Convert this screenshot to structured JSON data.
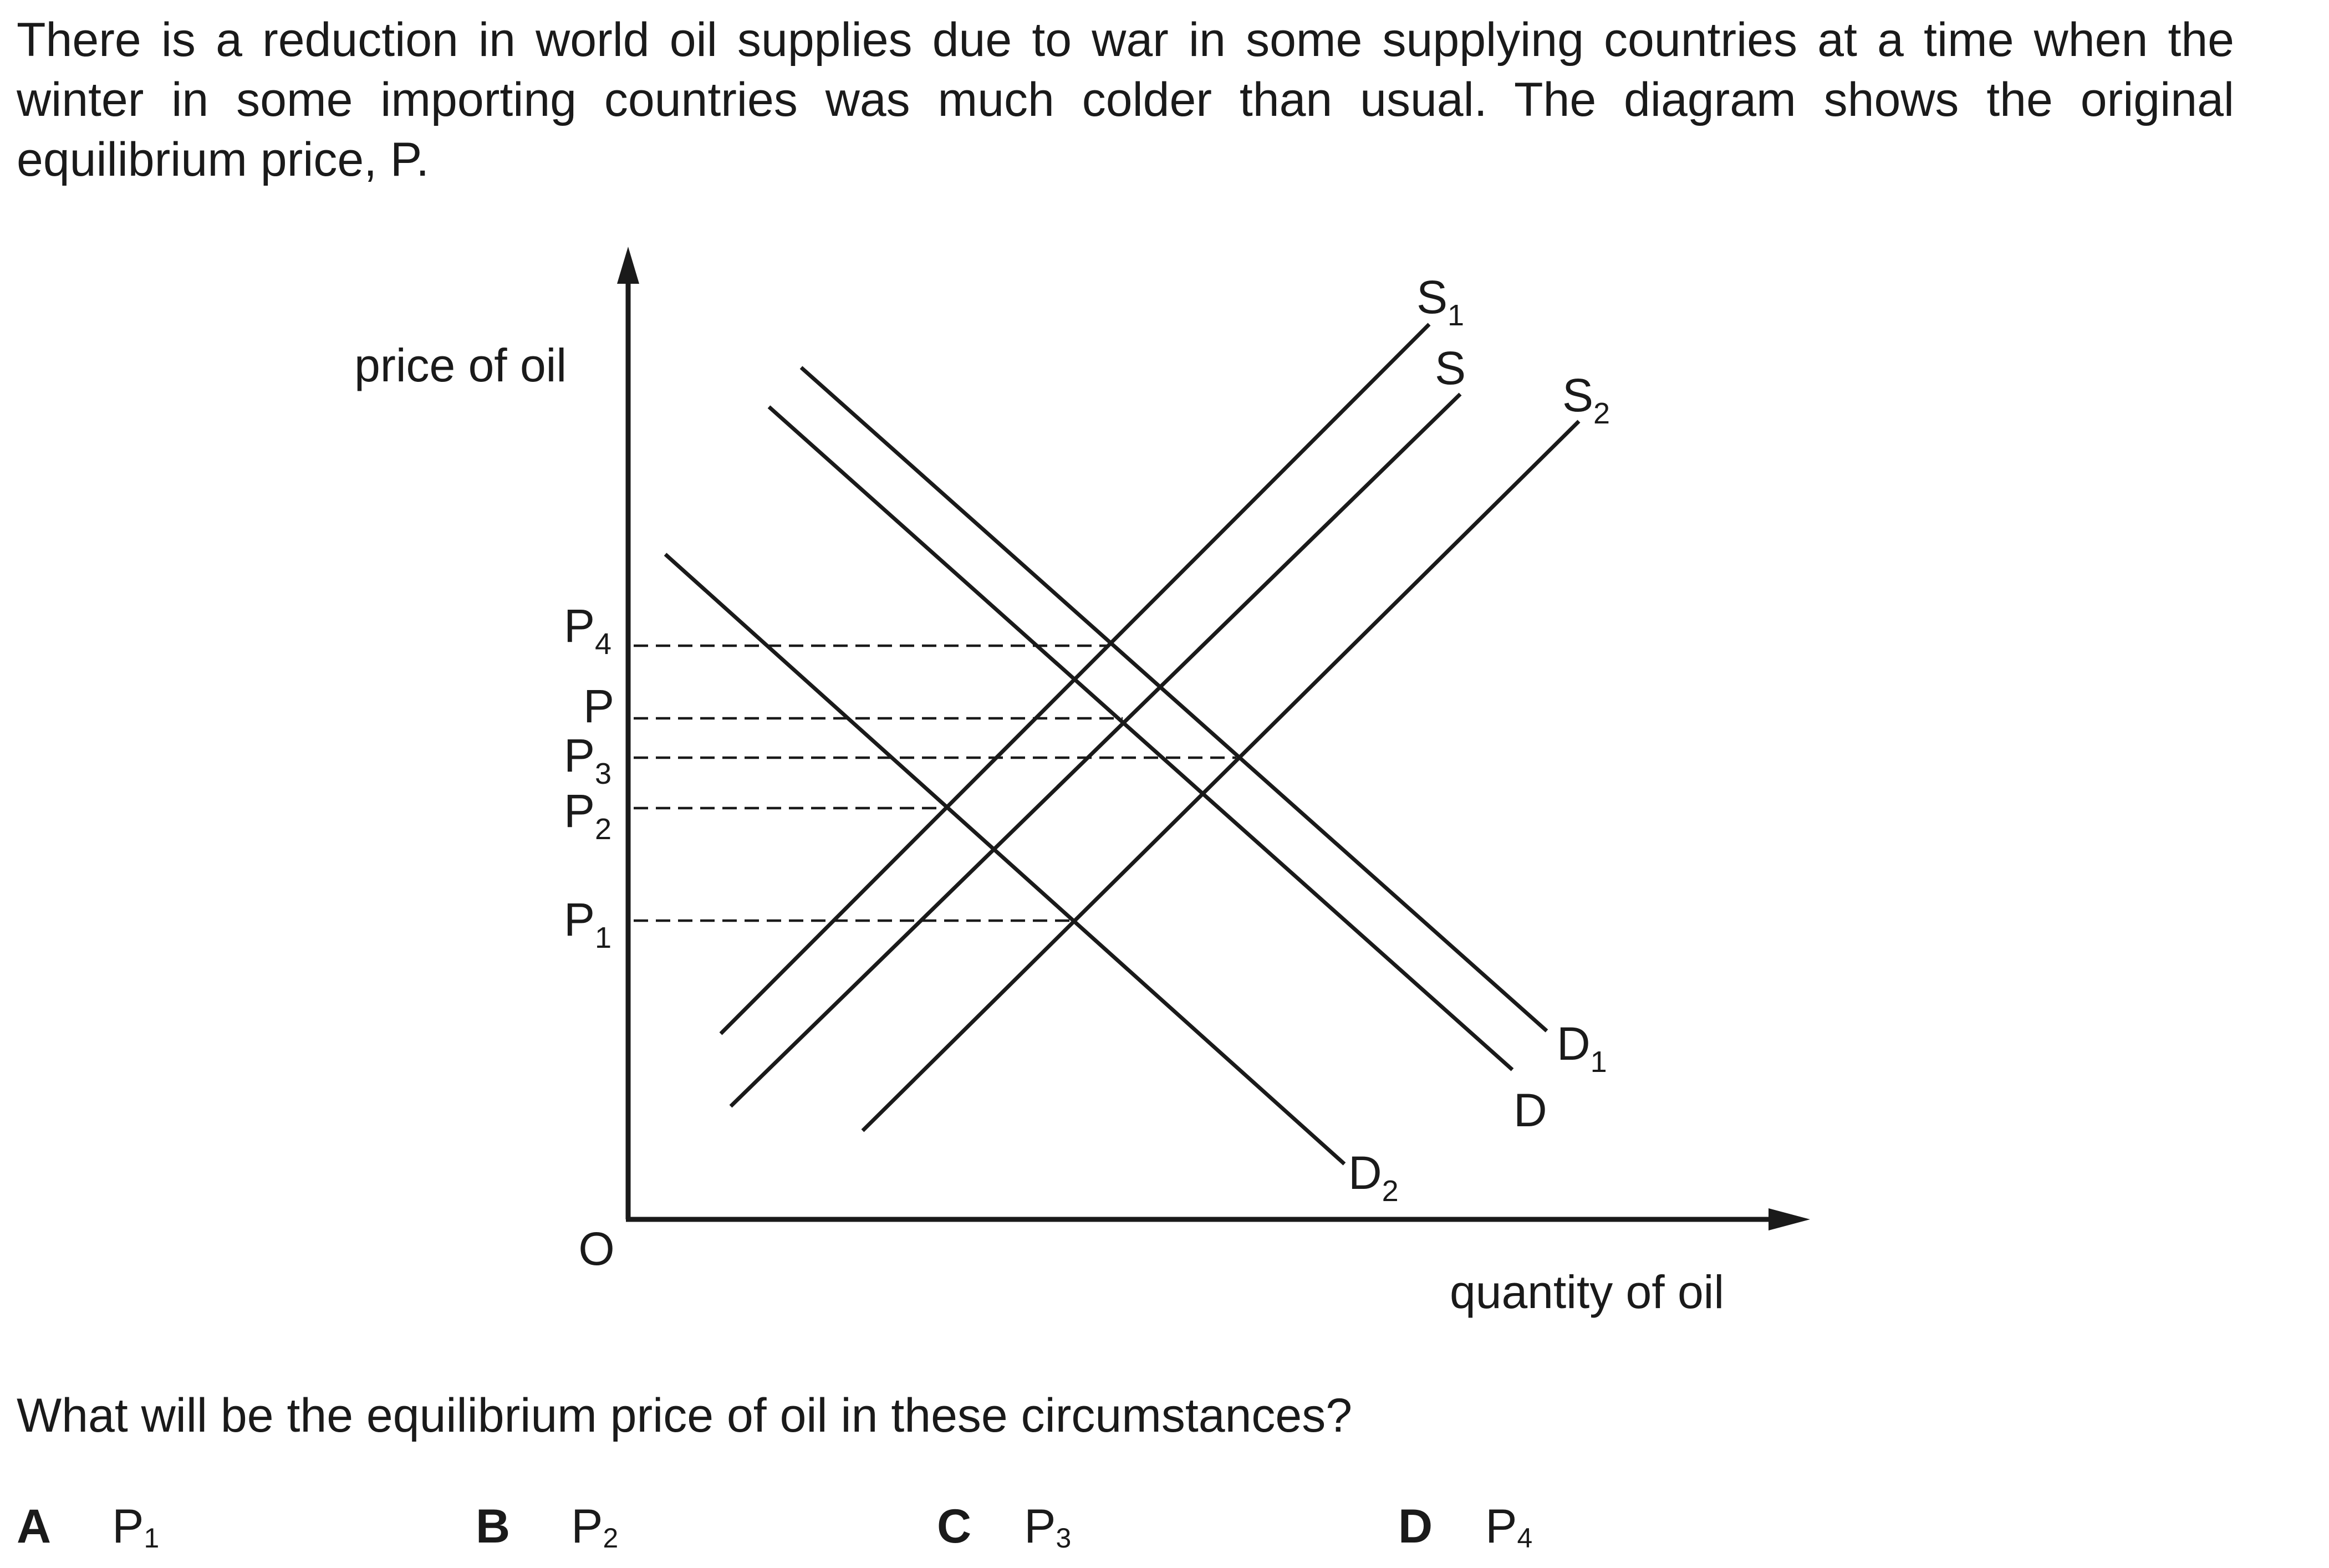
{
  "intro_text": "There is a reduction in world oil supplies due to war in some supplying countries at a time when the winter in some importing countries was much colder than usual. The diagram shows the original equilibrium price, P.",
  "diagram": {
    "y_axis_label": "price of oil",
    "x_axis_label": "quantity of oil",
    "origin_label": "O",
    "price_levels": [
      {
        "main": "P",
        "sub": "4"
      },
      {
        "main": "P",
        "sub": ""
      },
      {
        "main": "P",
        "sub": "3"
      },
      {
        "main": "P",
        "sub": "2"
      },
      {
        "main": "P",
        "sub": "1"
      }
    ],
    "supply_curves": [
      {
        "main": "S",
        "sub": "1"
      },
      {
        "main": "S",
        "sub": ""
      },
      {
        "main": "S",
        "sub": "2"
      }
    ],
    "demand_curves": [
      {
        "main": "D",
        "sub": "1"
      },
      {
        "main": "D",
        "sub": ""
      },
      {
        "main": "D",
        "sub": "2"
      }
    ]
  },
  "question_text": "What will be the equilibrium price of oil in these circumstances?",
  "options": [
    {
      "letter": "A",
      "main": "P",
      "sub": "1"
    },
    {
      "letter": "B",
      "main": "P",
      "sub": "2"
    },
    {
      "letter": "C",
      "main": "P",
      "sub": "3"
    },
    {
      "letter": "D",
      "main": "P",
      "sub": "4"
    }
  ]
}
